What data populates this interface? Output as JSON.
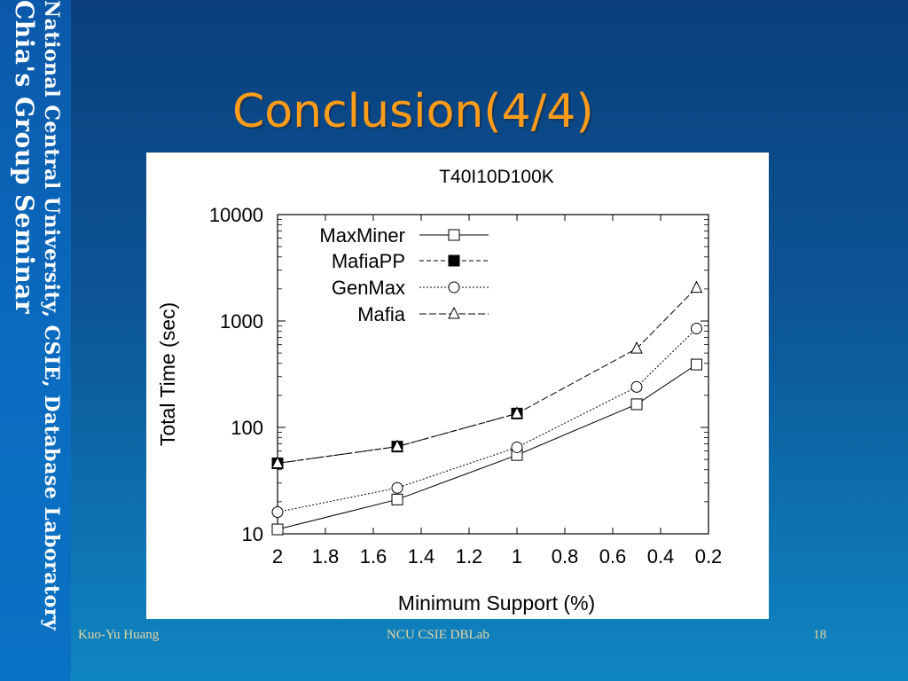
{
  "sidebar": {
    "line1": "National Central University, CSIE, Database Laboratory",
    "line2": "Chia's Group Seminar"
  },
  "slide_title": "Conclusion(4/4)",
  "footer": {
    "author": "Kuo-Yu Huang",
    "venue": "NCU CSIE DBLab",
    "page": "18"
  },
  "chart_data": {
    "type": "line",
    "title": "T40I10D100K",
    "xlabel": "Minimum Support (%)",
    "ylabel": "Total Time (sec)",
    "xlim": [
      2.0,
      0.2
    ],
    "x_reversed": true,
    "x_ticks": [
      "2",
      "1.8",
      "1.6",
      "1.4",
      "1.2",
      "1",
      "0.8",
      "0.6",
      "0.4",
      "0.2"
    ],
    "y_scale": "log",
    "ylim": [
      10,
      10000
    ],
    "y_ticks": [
      "10",
      "100",
      "1000",
      "10000"
    ],
    "legend": "top-left",
    "series": [
      {
        "name": "MaxMiner",
        "marker": "square-open",
        "x": [
          2,
          1.5,
          1,
          0.5,
          0.25
        ],
        "values": [
          11,
          21,
          55,
          165,
          390
        ]
      },
      {
        "name": "MafiaPP",
        "marker": "square-filled",
        "x": [
          2,
          1.5,
          1
        ],
        "values": [
          46,
          66,
          135
        ]
      },
      {
        "name": "GenMax",
        "marker": "circle-open",
        "x": [
          2,
          1.5,
          1,
          0.5,
          0.25
        ],
        "values": [
          16,
          27,
          65,
          240,
          850
        ]
      },
      {
        "name": "Mafia",
        "marker": "triangle-open",
        "x": [
          2,
          1.5,
          1,
          0.5,
          0.25
        ],
        "values": [
          46,
          66,
          135,
          550,
          2050
        ]
      }
    ]
  }
}
